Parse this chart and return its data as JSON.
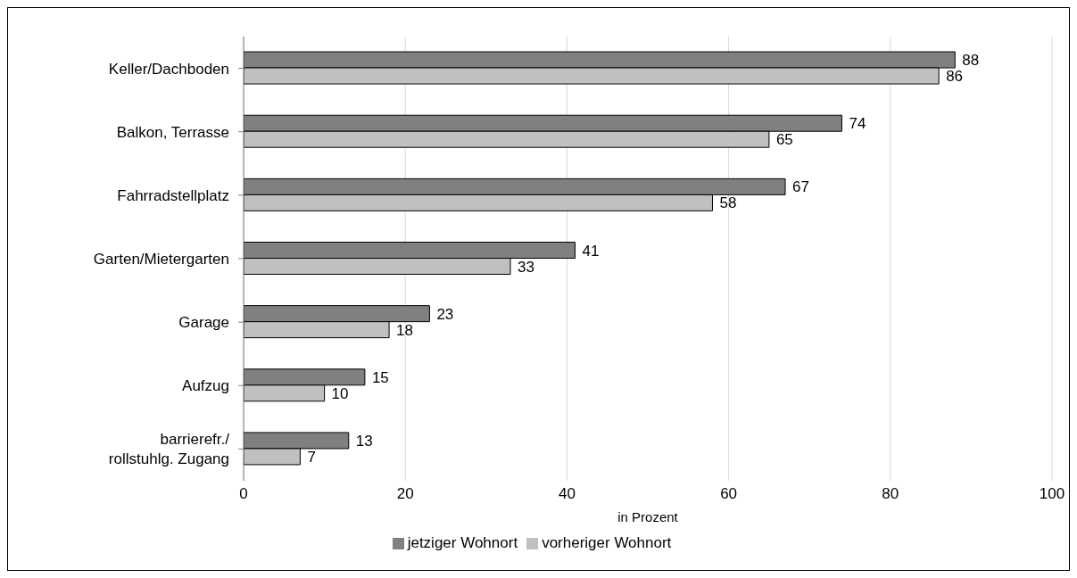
{
  "chart_data": {
    "type": "bar",
    "orientation": "horizontal",
    "xlabel": "in Prozent",
    "categories": [
      "Keller/Dachboden",
      "Balkon, Terrasse",
      "Fahrradstellplatz",
      "Garten/Mietergarten",
      "Garage",
      "Aufzug",
      "barrierefr./\nrollstuhlg. Zugang"
    ],
    "series": [
      {
        "name": "jetziger Wohnort",
        "color": "#808080",
        "values": [
          88,
          74,
          67,
          41,
          23,
          15,
          13
        ]
      },
      {
        "name": "vorheriger Wohnort",
        "color": "#c0c0c0",
        "values": [
          86,
          65,
          58,
          33,
          18,
          10,
          7
        ]
      }
    ],
    "xlim": [
      0,
      100
    ],
    "xticks": [
      0,
      20,
      40,
      60,
      80,
      100
    ],
    "grid": "x",
    "legend": "bottom",
    "data_labels": true
  }
}
